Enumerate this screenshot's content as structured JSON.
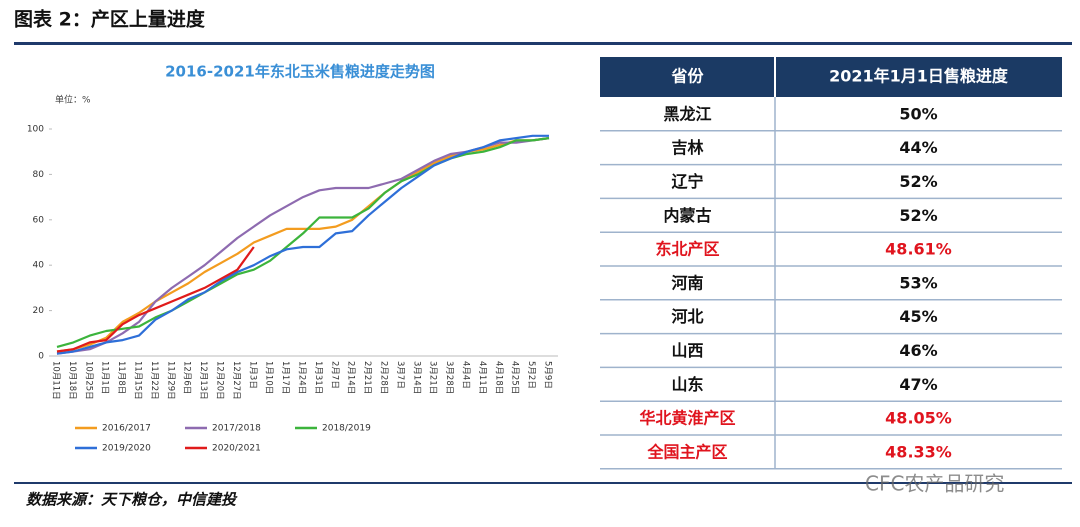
{
  "header": {
    "title": "图表 2：产区上量进度"
  },
  "chart_data": {
    "type": "line",
    "title": "2016-2021年东北玉米售粮进度走势图",
    "unit": "单位：%",
    "categories": [
      "10月11日",
      "10月18日",
      "10月25日",
      "11月1日",
      "11月8日",
      "11月15日",
      "11月22日",
      "11月29日",
      "12月6日",
      "12月13日",
      "12月20日",
      "12月27日",
      "1月3日",
      "1月10日",
      "1月17日",
      "1月24日",
      "1月31日",
      "2月7日",
      "2月14日",
      "2月21日",
      "2月28日",
      "3月7日",
      "3月14日",
      "3月21日",
      "3月28日",
      "4月4日",
      "4月11日",
      "4月18日",
      "4月25日",
      "5月2日",
      "5月9日"
    ],
    "series": [
      {
        "name": "2016/2017",
        "color": "#f39c1f",
        "values": [
          2,
          3,
          5,
          8,
          15,
          19,
          24,
          28,
          32,
          37,
          41,
          45,
          50,
          53,
          56,
          56,
          56,
          57,
          60,
          66,
          72,
          77,
          81,
          85,
          88,
          90,
          91,
          93,
          95,
          95,
          96
        ]
      },
      {
        "name": "2017/2018",
        "color": "#8e6bb0",
        "values": [
          1,
          2,
          3,
          6,
          10,
          15,
          24,
          30,
          35,
          40,
          46,
          52,
          57,
          62,
          66,
          70,
          73,
          74,
          74,
          74,
          76,
          78,
          82,
          86,
          89,
          90,
          92,
          94,
          94,
          95,
          96
        ]
      },
      {
        "name": "2018/2019",
        "color": "#3cb43c",
        "values": [
          4,
          6,
          9,
          11,
          12,
          13,
          17,
          20,
          24,
          28,
          32,
          36,
          38,
          42,
          48,
          54,
          61,
          61,
          61,
          65,
          72,
          77,
          80,
          84,
          87,
          89,
          90,
          92,
          95,
          95,
          96
        ]
      },
      {
        "name": "2019/2020",
        "color": "#2e6fd8",
        "values": [
          1,
          2,
          4,
          6,
          7,
          9,
          16,
          20,
          25,
          28,
          33,
          37,
          40,
          44,
          47,
          48,
          48,
          54,
          55,
          62,
          68,
          74,
          79,
          84,
          87,
          90,
          92,
          95,
          96,
          97,
          97
        ]
      },
      {
        "name": "2020/2021",
        "color": "#e01b1b",
        "values": [
          2,
          3,
          6,
          7,
          14,
          18,
          21,
          24,
          27,
          30,
          34,
          38,
          48,
          null,
          null,
          null,
          null,
          null,
          null,
          null,
          null,
          null,
          null,
          null,
          null,
          null,
          null,
          null,
          null,
          null,
          null
        ]
      }
    ],
    "ylim": [
      0,
      100
    ],
    "yticks": [
      0,
      20,
      40,
      60,
      80,
      100
    ],
    "grid": false
  },
  "table": {
    "columns": [
      "省份",
      "2021年1月1日售粮进度"
    ],
    "rows": [
      [
        "黑龙江",
        "50%"
      ],
      [
        "吉林",
        "44%"
      ],
      [
        "辽宁",
        "52%"
      ],
      [
        "内蒙古",
        "52%"
      ],
      [
        "东北产区",
        "48.61%"
      ],
      [
        "河南",
        "53%"
      ],
      [
        "河北",
        "45%"
      ],
      [
        "山西",
        "46%"
      ],
      [
        "山东",
        "47%"
      ],
      [
        "华北黄淮产区",
        "48.05%"
      ],
      [
        "全国主产区",
        "48.33%"
      ]
    ],
    "highlight_rows": [
      4,
      9,
      10
    ],
    "highlight_color": "#e0141e"
  },
  "footer": {
    "source": "数据来源：天下粮仓，中信建投",
    "watermark": "CFC农产品研究"
  }
}
